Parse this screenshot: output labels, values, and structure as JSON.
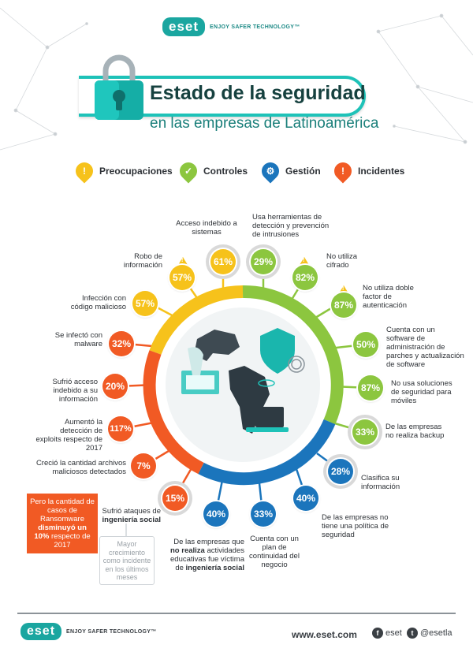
{
  "brand": {
    "logo": "eset",
    "tagline": "ENJOY SAFER TECHNOLOGY™"
  },
  "header": {
    "title": "Estado de la seguridad",
    "subtitle": "en las empresas de Latinoamérica",
    "icon": "padlock-icon"
  },
  "legend": [
    {
      "label": "Preocupaciones",
      "icon": "warning-icon",
      "color": "#f6c21b"
    },
    {
      "label": "Controles",
      "icon": "check-icon",
      "color": "#8cc63f"
    },
    {
      "label": "Gestión",
      "icon": "gear-icon",
      "color": "#1b75bc"
    },
    {
      "label": "Incidentes",
      "icon": "alert-burst-icon",
      "color": "#f15a24"
    }
  ],
  "stats": [
    {
      "value": "61%",
      "category": "Preocupaciones",
      "label": "Acceso indebido a sistemas"
    },
    {
      "value": "29%",
      "category": "Controles",
      "label": "Usa herramientas de detección y prevención de intrusiones"
    },
    {
      "value": "82%",
      "category": "Controles",
      "label": "No utiliza cifrado"
    },
    {
      "value": "87%",
      "category": "Controles",
      "label": "No utiliza doble factor de autenticación"
    },
    {
      "value": "50%",
      "category": "Controles",
      "label": "Cuenta con un software de administración de parches y actualización de software"
    },
    {
      "value": "87%",
      "category": "Controles",
      "label": "No usa soluciones de seguridad para móviles"
    },
    {
      "value": "33%",
      "category": "Controles",
      "label": "De las empresas no realiza backup"
    },
    {
      "value": "28%",
      "category": "Gestión",
      "label": "Clasifica su información"
    },
    {
      "value": "40%",
      "category": "Gestión",
      "label": "De las empresas no tiene una política de seguridad"
    },
    {
      "value": "33%",
      "category": "Gestión",
      "label": "Cuenta con un plan de continuidad del negocio"
    },
    {
      "value": "40%",
      "category": "Gestión",
      "label_pre": "De las empresas que",
      "label_bold": "no realiza",
      "label_mid": "actividades educativas fue víctima de",
      "label_bold2": "ingeniería social"
    },
    {
      "value": "15%",
      "category": "Incidentes",
      "label_pre": "Sufrió ataques de",
      "label_bold": "ingeniería social"
    },
    {
      "value": "7%",
      "category": "Incidentes",
      "label": "Creció la cantidad archivos maliciosos detectados"
    },
    {
      "value": "117%",
      "category": "Incidentes",
      "label": "Aumentó la detección de exploits respecto de 2017"
    },
    {
      "value": "20%",
      "category": "Incidentes",
      "label": "Sufrió acceso indebido a su información"
    },
    {
      "value": "32%",
      "category": "Incidentes",
      "label": "Se infectó con malware"
    },
    {
      "value": "57%",
      "category": "Preocupaciones",
      "label": "Infección con código malicioso"
    },
    {
      "value": "57%",
      "category": "Preocupaciones",
      "label": "Robo de información"
    }
  ],
  "ransomware_note": {
    "pre": "Pero la cantidad de casos de Ransomware",
    "bold": "disminuyó un 10%",
    "post": "respecto de 2017"
  },
  "side_note": "Mayor crecimiento como incidente en los últimos meses",
  "footer": {
    "url": "www.eset.com",
    "facebook": "eset",
    "twitter": "@esetla"
  }
}
